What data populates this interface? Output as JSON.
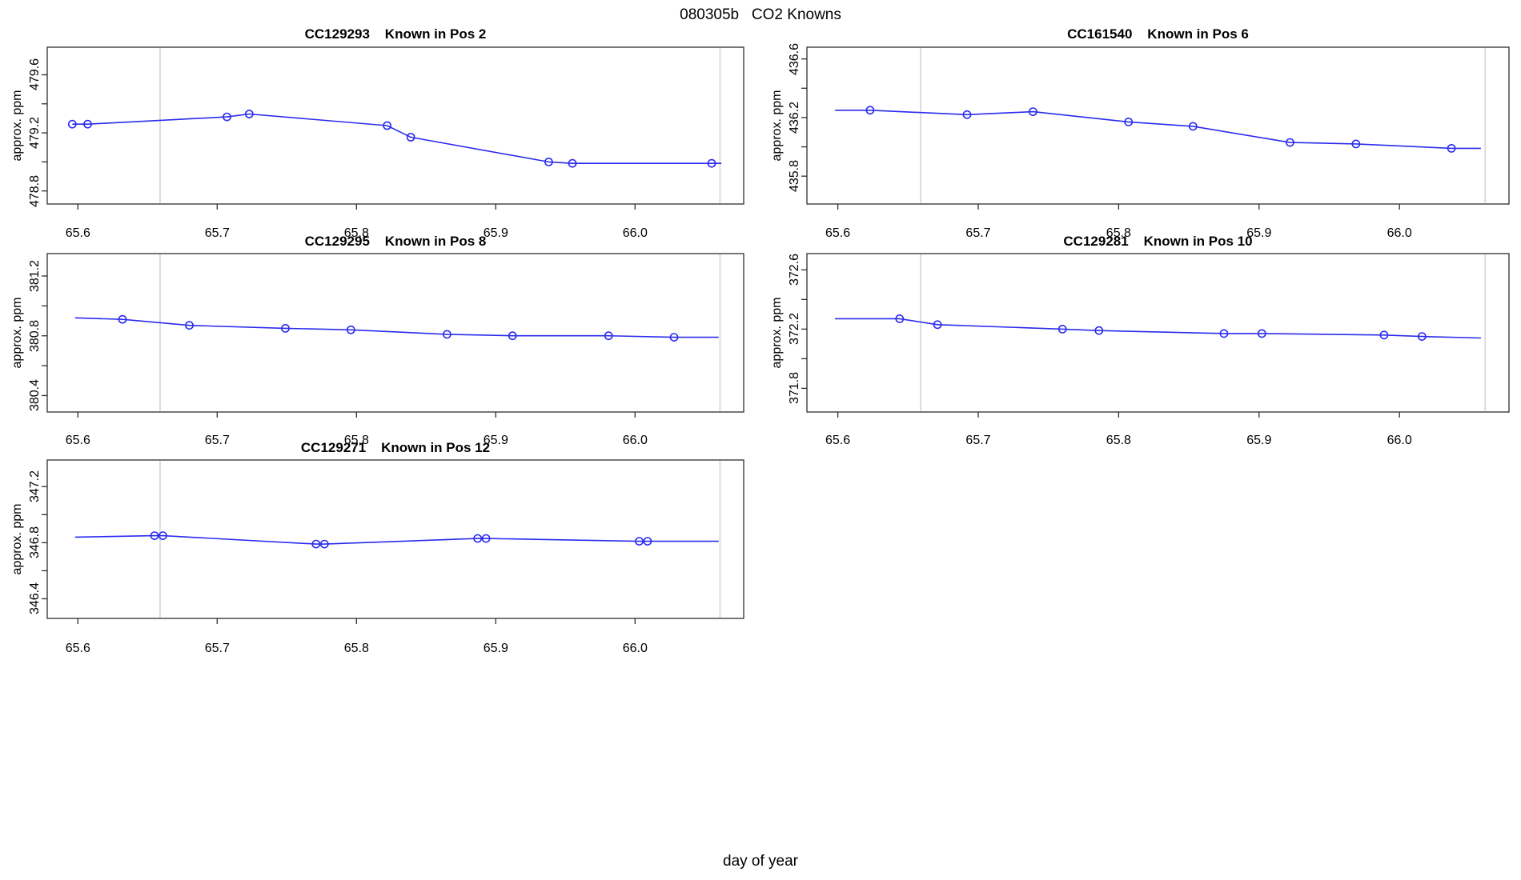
{
  "header": {
    "title": "080305b   CO2 Knowns"
  },
  "footer": {
    "xlabel": "day of year"
  },
  "styles": {
    "line_color": "#2b2bee",
    "marker_color": "#2b2bee",
    "vline_color": "#dcdcdc",
    "axis_color": "#2e2e2e",
    "text_color": "#000000",
    "background": "#ffffff"
  },
  "x_axis": {
    "label": "day of year",
    "xlim": [
      65.578,
      66.078
    ],
    "tick_values": [
      65.6,
      65.7,
      65.8,
      65.9,
      66.0
    ],
    "tick_labels": [
      "65.6",
      "65.7",
      "65.8",
      "65.9",
      "66.0"
    ],
    "vlines": [
      65.659,
      66.061
    ]
  },
  "chart_data": [
    {
      "type": "line",
      "title": "CC129293    Known in Pos 2",
      "sample_id": "CC129293",
      "position_label": "Known in Pos 2",
      "ylabel": "approx. ppm",
      "xlabel": "day of year",
      "grid": {
        "row": 0,
        "col": 0
      },
      "ylim": [
        478.71,
        479.79
      ],
      "ytick_values": [
        478.8,
        479.2,
        479.6
      ],
      "ytick_labels": [
        "478.8",
        "479.2",
        "479.6"
      ],
      "ytick_minor": [
        479.0,
        479.4
      ],
      "x": [
        65.596,
        65.607,
        65.707,
        65.723,
        65.822,
        65.839,
        65.938,
        65.955,
        66.055
      ],
      "y": [
        479.26,
        479.26,
        479.31,
        479.33,
        479.25,
        479.17,
        479.0,
        478.99,
        478.99
      ],
      "line_start": null,
      "line_end": [
        66.062,
        478.99
      ]
    },
    {
      "type": "line",
      "title": "CC161540    Known in Pos 6",
      "sample_id": "CC161540",
      "position_label": "Known in Pos 6",
      "ylabel": "approx. ppm",
      "xlabel": "day of year",
      "grid": {
        "row": 0,
        "col": 1
      },
      "ylim": [
        435.61,
        436.68
      ],
      "ytick_values": [
        435.8,
        436.2,
        436.6
      ],
      "ytick_labels": [
        "435.8",
        "436.2",
        "436.6"
      ],
      "ytick_minor": [
        436.0,
        436.4
      ],
      "x": [
        65.623,
        65.692,
        65.739,
        65.807,
        65.853,
        65.922,
        65.969,
        66.037
      ],
      "y": [
        436.25,
        436.22,
        436.24,
        436.17,
        436.14,
        436.03,
        436.02,
        435.99
      ],
      "line_start": [
        65.598,
        436.25
      ],
      "line_end": [
        66.058,
        435.99
      ]
    },
    {
      "type": "line",
      "title": "CC129295    Known in Pos 8",
      "sample_id": "CC129295",
      "position_label": "Known in Pos 8",
      "ylabel": "approx. ppm",
      "xlabel": "day of year",
      "grid": {
        "row": 1,
        "col": 0
      },
      "ylim": [
        380.29,
        381.35
      ],
      "ytick_values": [
        380.4,
        380.8,
        381.2
      ],
      "ytick_labels": [
        "380.4",
        "380.8",
        "381.2"
      ],
      "ytick_minor": [
        380.6,
        381.0
      ],
      "x": [
        65.632,
        65.68,
        65.749,
        65.796,
        65.865,
        65.912,
        65.981,
        66.028
      ],
      "y": [
        380.91,
        380.87,
        380.85,
        380.84,
        380.81,
        380.8,
        380.8,
        380.79
      ],
      "line_start": [
        65.598,
        380.92
      ],
      "line_end": [
        66.06,
        380.79
      ]
    },
    {
      "type": "line",
      "title": "CC129281    Known in Pos 10",
      "sample_id": "CC129281",
      "position_label": "Known in Pos 10",
      "ylabel": "approx. ppm",
      "xlabel": "day of year",
      "grid": {
        "row": 1,
        "col": 1
      },
      "ylim": [
        371.64,
        372.71
      ],
      "ytick_values": [
        371.8,
        372.2,
        372.6
      ],
      "ytick_labels": [
        "371.8",
        "372.2",
        "372.6"
      ],
      "ytick_minor": [
        372.0,
        372.4
      ],
      "x": [
        65.644,
        65.671,
        65.76,
        65.786,
        65.875,
        65.902,
        65.989,
        66.016
      ],
      "y": [
        372.27,
        372.23,
        372.2,
        372.19,
        372.17,
        372.17,
        372.16,
        372.15
      ],
      "line_start": [
        65.598,
        372.27
      ],
      "line_end": [
        66.058,
        372.14
      ]
    },
    {
      "type": "line",
      "title": "CC129271    Known in Pos 12",
      "sample_id": "CC129271",
      "position_label": "Known in Pos 12",
      "ylabel": "approx. ppm",
      "xlabel": "day of year",
      "grid": {
        "row": 2,
        "col": 0
      },
      "ylim": [
        346.26,
        347.39
      ],
      "ytick_values": [
        346.4,
        346.8,
        347.2
      ],
      "ytick_labels": [
        "346.4",
        "346.8",
        "347.2"
      ],
      "ytick_minor": [
        346.6,
        347.0
      ],
      "x": [
        65.655,
        65.661,
        65.771,
        65.777,
        65.887,
        65.893,
        66.003,
        66.009
      ],
      "y": [
        346.85,
        346.85,
        346.79,
        346.79,
        346.83,
        346.83,
        346.81,
        346.81
      ],
      "line_start": [
        65.598,
        346.84
      ],
      "line_end": [
        66.06,
        346.81
      ]
    }
  ]
}
